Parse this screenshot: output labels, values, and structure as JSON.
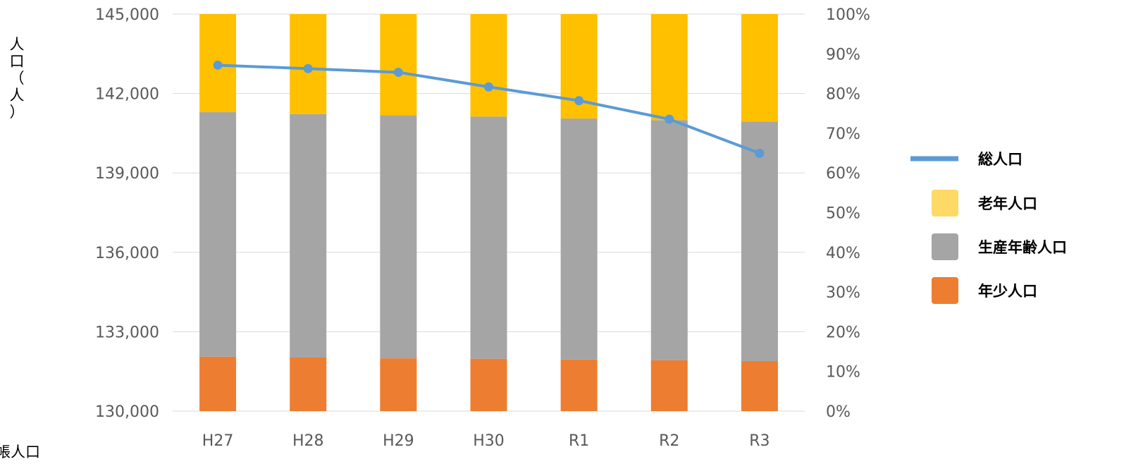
{
  "chart_data": {
    "type": "bar",
    "stacked": true,
    "categories": [
      "H27",
      "H28",
      "H29",
      "H30",
      "R1",
      "R2",
      "R3"
    ],
    "series": [
      {
        "name": "年少人口",
        "axis": "right",
        "color": "#ED7D31",
        "values": [
          13.7,
          13.5,
          13.3,
          13.2,
          13.0,
          12.8,
          12.6
        ]
      },
      {
        "name": "生産年齢人口",
        "axis": "right",
        "color": "#A5A5A5",
        "values": [
          61.6,
          61.3,
          61.2,
          61.0,
          60.7,
          60.5,
          60.3
        ]
      },
      {
        "name": "老年人口",
        "axis": "right",
        "color": "#FFC000",
        "legend_color": "#FFD966",
        "values": [
          24.7,
          25.2,
          25.5,
          25.8,
          26.3,
          26.7,
          27.1
        ]
      },
      {
        "name": "総人口",
        "type": "line",
        "axis": "left",
        "color": "#5B9BD5",
        "values": [
          143070,
          142940,
          142800,
          142250,
          141730,
          141030,
          139740
        ]
      }
    ],
    "y_left": {
      "label": "人口（人）",
      "ticks": [
        "145,000",
        "142,000",
        "139,000",
        "136,000",
        "133,000",
        "130,000"
      ],
      "range": [
        130000,
        145000
      ]
    },
    "y_right": {
      "ticks": [
        "100%",
        "90%",
        "80%",
        "70%",
        "60%",
        "50%",
        "40%",
        "30%",
        "20%",
        "10%",
        "0%"
      ],
      "range": [
        0,
        100
      ]
    },
    "legend_order": [
      "総人口",
      "老年人口",
      "生産年齢人口",
      "年少人口"
    ],
    "legend_position": "right",
    "grid": true,
    "footnote": "帳人口"
  }
}
